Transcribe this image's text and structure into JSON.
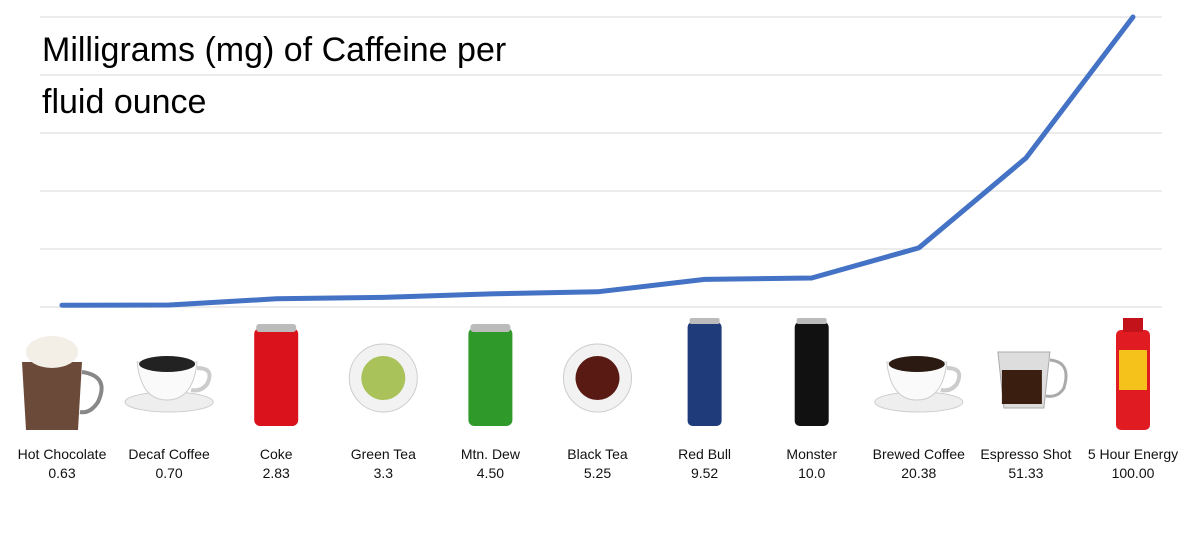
{
  "chart_data": {
    "type": "line",
    "title": "Milligrams (mg) of Caffeine per fluid ounce",
    "categories": [
      "Hot Chocolate",
      "Decaf Coffee",
      "Coke",
      "Green Tea",
      "Mtn. Dew",
      "Black Tea",
      "Red Bull",
      "Monster",
      "Brewed Coffee",
      "Espresso Shot",
      "5 Hour Energy"
    ],
    "values": [
      0.63,
      0.7,
      2.83,
      3.3,
      4.5,
      5.25,
      9.52,
      10.0,
      20.38,
      51.33,
      100.0
    ],
    "value_labels": [
      "0.63",
      "0.70",
      "2.83",
      "3.3",
      "4.50",
      "5.25",
      "9.52",
      "10.0",
      "20.38",
      "51.33",
      "100.00"
    ],
    "color": "#4472c4",
    "ylim": [
      0,
      100
    ],
    "yticks": [
      0,
      20,
      40,
      60,
      80,
      100
    ],
    "grid": true
  }
}
